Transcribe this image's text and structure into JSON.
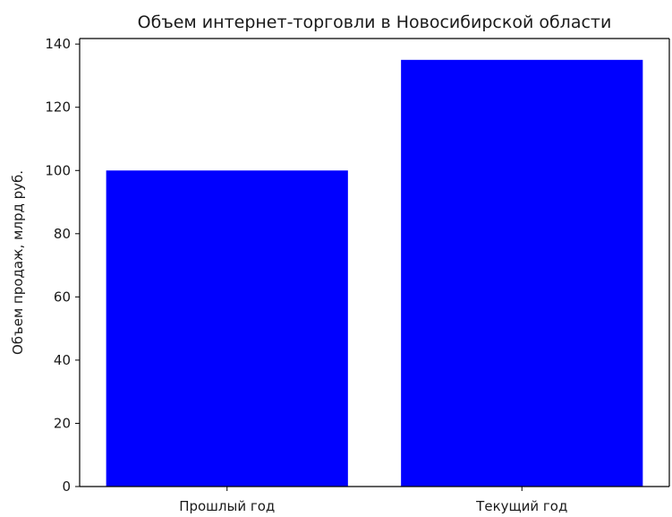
{
  "chart_data": {
    "type": "bar",
    "title": "Объем интернет-торговли в Новосибирской области",
    "xlabel": "",
    "ylabel": "Объем продаж, млрд руб.",
    "categories": [
      "Прошлый год",
      "Текущий год"
    ],
    "values": [
      100,
      135
    ],
    "ylim": [
      0,
      141.75
    ],
    "yticks": [
      0,
      20,
      40,
      60,
      80,
      100,
      120,
      140
    ],
    "grid": false,
    "legend": "none",
    "bar_color": "#0000ff"
  }
}
